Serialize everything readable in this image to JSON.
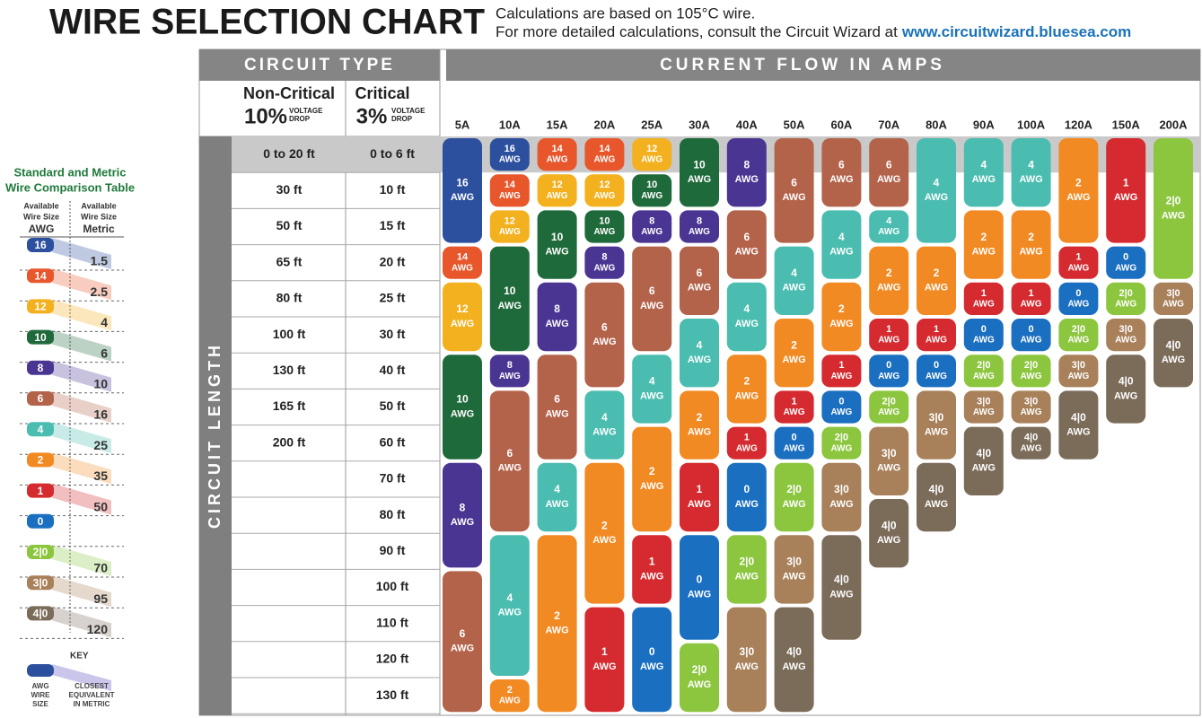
{
  "header": {
    "title": "WIRE SELECTION CHART",
    "note_line1": "Calculations are based on 105°C wire.",
    "note_line2": "For more detailed calculations, consult the Circuit Wizard at",
    "link": "www.circuitwizard.bluesea.com"
  },
  "table": {
    "circuit_type_heading": "CIRCUIT TYPE",
    "current_heading": "CURRENT FLOW IN AMPS",
    "length_heading": "CIRCUIT LENGTH",
    "non_critical": {
      "label": "Non-Critical",
      "percent": "10%",
      "drop": [
        "VOLTAGE",
        "DROP"
      ]
    },
    "critical": {
      "label": "Critical",
      "percent": "3%",
      "drop": [
        "VOLTAGE",
        "DROP"
      ]
    },
    "awg_unit": "AWG",
    "gauge_colors": {
      "16": "#2c4f9e",
      "14": "#e8562b",
      "12": "#f3b11f",
      "10": "#1f6a3b",
      "8": "#4a3592",
      "6": "#b4634b",
      "4": "#4bbdb0",
      "2": "#f28a24",
      "1": "#d52a2f",
      "0": "#1b6fc0",
      "2|0": "#8cc63f",
      "3|0": "#a8805a",
      "4|0": "#7b6b59"
    },
    "rows": [
      [
        "0 to 20 ft",
        "0 to 6 ft"
      ],
      [
        "30 ft",
        "10 ft"
      ],
      [
        "50 ft",
        "15 ft"
      ],
      [
        "65 ft",
        "20 ft"
      ],
      [
        "80 ft",
        "25 ft"
      ],
      [
        "100 ft",
        "30 ft"
      ],
      [
        "130 ft",
        "40 ft"
      ],
      [
        "165 ft",
        "50 ft"
      ],
      [
        "200 ft",
        "60 ft"
      ],
      [
        null,
        "70 ft"
      ],
      [
        null,
        "80 ft"
      ],
      [
        null,
        "90 ft"
      ],
      [
        null,
        "100 ft"
      ],
      [
        null,
        "110 ft"
      ],
      [
        null,
        "120 ft"
      ],
      [
        null,
        "130 ft"
      ]
    ],
    "columns": [
      {
        "amps": "5A",
        "cells": [
          "16",
          "16",
          "16",
          "14",
          "12",
          "12",
          "10",
          "10",
          "10",
          "8",
          "8",
          "8",
          "6",
          "6",
          "6",
          "6"
        ]
      },
      {
        "amps": "10A",
        "cells": [
          "16",
          "14",
          "12",
          "10",
          "10",
          "10",
          "8",
          "6",
          "6",
          "6",
          "6",
          "4",
          "4",
          "4",
          "4",
          "2"
        ]
      },
      {
        "amps": "15A",
        "cells": [
          "14",
          "12",
          "10",
          "10",
          "8",
          "8",
          "6",
          "6",
          "6",
          "4",
          "4",
          "2",
          "2",
          "2",
          "2",
          "2"
        ]
      },
      {
        "amps": "20A",
        "cells": [
          "14",
          "12",
          "10",
          "8",
          "6",
          "6",
          "6",
          "4",
          "4",
          "2",
          "2",
          "2",
          "2",
          "1",
          "1",
          "1"
        ]
      },
      {
        "amps": "25A",
        "cells": [
          "12",
          "10",
          "8",
          "6",
          "6",
          "6",
          "4",
          "4",
          "2",
          "2",
          "2",
          "1",
          "1",
          "0",
          "0",
          "0"
        ]
      },
      {
        "amps": "30A",
        "cells": [
          "10",
          "10",
          "8",
          "6",
          "6",
          "4",
          "4",
          "2",
          "2",
          "1",
          "1",
          "0",
          "0",
          "0",
          "2|0",
          "2|0"
        ]
      },
      {
        "amps": "40A",
        "cells": [
          "8",
          "8",
          "6",
          "6",
          "4",
          "4",
          "2",
          "2",
          "1",
          "0",
          "0",
          "2|0",
          "2|0",
          "3|0",
          "3|0",
          "3|0"
        ]
      },
      {
        "amps": "50A",
        "cells": [
          "6",
          "6",
          "6",
          "4",
          "4",
          "2",
          "2",
          "1",
          "0",
          "2|0",
          "2|0",
          "3|0",
          "3|0",
          "4|0",
          "4|0",
          "4|0"
        ]
      },
      {
        "amps": "60A",
        "cells": [
          "6",
          "6",
          "4",
          "4",
          "2",
          "2",
          "1",
          "0",
          "2|0",
          "3|0",
          "3|0",
          "4|0",
          "4|0",
          "4|0",
          null,
          null
        ]
      },
      {
        "amps": "70A",
        "cells": [
          "6",
          "6",
          "4",
          "2",
          "2",
          "1",
          "0",
          "2|0",
          "3|0",
          "3|0",
          "4|0",
          "4|0",
          null,
          null,
          null,
          null
        ]
      },
      {
        "amps": "80A",
        "cells": [
          "4",
          "4",
          "4",
          "2",
          "2",
          "1",
          "0",
          "3|0",
          "3|0",
          "4|0",
          "4|0",
          null,
          null,
          null,
          null,
          null
        ]
      },
      {
        "amps": "90A",
        "cells": [
          "4",
          "4",
          "2",
          "2",
          "1",
          "0",
          "2|0",
          "3|0",
          "4|0",
          "4|0",
          null,
          null,
          null,
          null,
          null,
          null
        ]
      },
      {
        "amps": "100A",
        "cells": [
          "4",
          "4",
          "2",
          "2",
          "1",
          "0",
          "2|0",
          "3|0",
          "4|0",
          null,
          null,
          null,
          null,
          null,
          null,
          null
        ]
      },
      {
        "amps": "120A",
        "cells": [
          "2",
          "2",
          "2",
          "1",
          "0",
          "2|0",
          "3|0",
          "4|0",
          "4|0",
          null,
          null,
          null,
          null,
          null,
          null,
          null
        ]
      },
      {
        "amps": "150A",
        "cells": [
          "1",
          "1",
          "1",
          "0",
          "2|0",
          "3|0",
          "4|0",
          "4|0",
          null,
          null,
          null,
          null,
          null,
          null,
          null,
          null
        ]
      },
      {
        "amps": "200A",
        "cells": [
          "2|0",
          "2|0",
          "2|0",
          "2|0",
          "3|0",
          "4|0",
          "4|0",
          null,
          null,
          null,
          null,
          null,
          null,
          null,
          null,
          null
        ]
      }
    ]
  },
  "comparison": {
    "title": [
      "Standard and Metric",
      "Wire Comparison Table"
    ],
    "awg_header": [
      "Available",
      "Wire Size",
      "AWG"
    ],
    "metric_header": [
      "Available",
      "Wire Size",
      "Metric"
    ],
    "pairs": [
      {
        "awg": "16",
        "metric": "1.5"
      },
      {
        "awg": "14",
        "metric": "2.5"
      },
      {
        "awg": "12",
        "metric": "4"
      },
      {
        "awg": "10",
        "metric": "6"
      },
      {
        "awg": "8",
        "metric": "10"
      },
      {
        "awg": "6",
        "metric": "16"
      },
      {
        "awg": "4",
        "metric": "25"
      },
      {
        "awg": "2",
        "metric": "35"
      },
      {
        "awg": "1",
        "metric": "50"
      },
      {
        "awg": "0",
        "metric": null
      },
      {
        "awg": "2|0",
        "metric": "70"
      },
      {
        "awg": "3|0",
        "metric": "95"
      },
      {
        "awg": "4|0",
        "metric": "120"
      }
    ],
    "key": {
      "title": "KEY",
      "awg": [
        "AWG",
        "WIRE",
        "SIZE"
      ],
      "metric": [
        "CLOSEST",
        "EQUIVALENT",
        "IN METRIC"
      ]
    }
  }
}
